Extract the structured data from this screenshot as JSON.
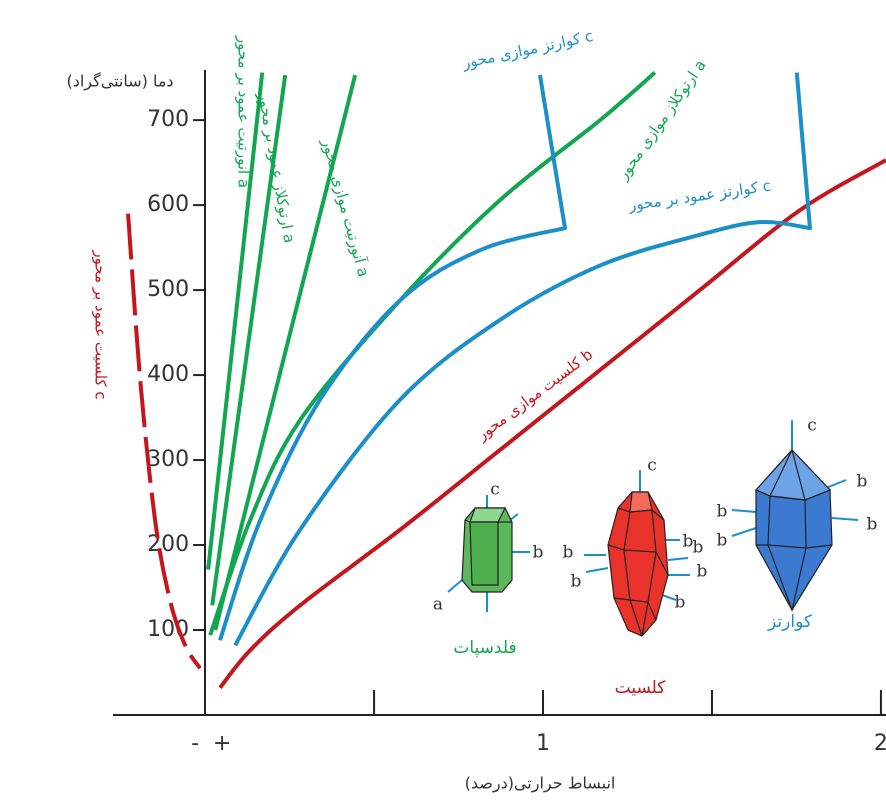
{
  "chart_data": {
    "type": "line",
    "ylabel": "دما (سانتی‌گراد)",
    "xlabel": "انبساط حرارتی(درصد)",
    "xlim": [
      -0.607,
      2.015
    ],
    "ylim": [
      0,
      759
    ],
    "yticks": [
      100,
      200,
      300,
      400,
      500,
      600,
      700
    ],
    "xticks": [
      1,
      2
    ],
    "xminor": [
      0.5,
      1.5
    ],
    "sign_labels": [
      "-",
      "+"
    ],
    "series": [
      {
        "name": "کلسیت عمود بر محور c",
        "color": "#c4161c",
        "dash": true,
        "x": [
          -0.228,
          -0.192,
          -0.148,
          -0.104,
          -0.059,
          -0.015
        ],
        "values": [
          590,
          394,
          229,
          135,
          82,
          55
        ]
      },
      {
        "name": "کلسیت موازی محور b",
        "color": "#c4161c",
        "x": [
          0.044,
          0.133,
          0.281,
          0.577,
          0.873,
          1.169,
          1.464,
          1.76,
          2.015
        ],
        "values": [
          32,
          76,
          129,
          218,
          312,
          406,
          500,
          594,
          653
        ]
      },
      {
        "name": "آنورتیت عمود بر محور a",
        "color": "#12a650",
        "x": [
          0.009,
          0.169
        ],
        "values": [
          171,
          756
        ]
      },
      {
        "name": "ارتوکلاز عمود بر محور a",
        "color": "#12a650",
        "x": [
          0.021,
          0.237
        ],
        "values": [
          129,
          753
        ]
      },
      {
        "name": "آنورتیت موازی محور a",
        "color": "#12a650",
        "x": [
          0.03,
          0.444
        ],
        "values": [
          100,
          753
        ]
      },
      {
        "name": "ارتوکلاز موازی محور a",
        "color": "#12a650",
        "x": [
          0.015,
          0.133,
          0.281,
          0.577,
          0.873,
          1.169,
          1.331
        ],
        "values": [
          94,
          229,
          347,
          488,
          606,
          700,
          756
        ]
      },
      {
        "name": "کوارتز موازی محور c",
        "color": "#1b8fc9",
        "x": [
          0.044,
          0.163,
          0.34,
          0.577,
          0.814,
          1.065,
          0.991
        ],
        "values": [
          88,
          229,
          371,
          488,
          547,
          573,
          753
        ]
      },
      {
        "name": "کوارتز عمود بر محور c",
        "color": "#1b8fc9",
        "x": [
          0.089,
          0.281,
          0.577,
          0.873,
          1.169,
          1.464,
          1.642,
          1.79,
          1.751
        ],
        "values": [
          82,
          218,
          371,
          465,
          529,
          565,
          580,
          573,
          756
        ]
      }
    ],
    "minerals": [
      {
        "name": "فلدسپات",
        "color": "#12a650",
        "axis_labels": [
          "c",
          "b",
          "a"
        ]
      },
      {
        "name": "کلسیت",
        "color": "#c4161c",
        "axis_labels": [
          "c",
          "b",
          "b",
          "b",
          "b",
          "b",
          "b"
        ]
      },
      {
        "name": "کوارتز",
        "color": "#1b8fc9",
        "axis_labels": [
          "c",
          "b",
          "b",
          "b",
          "b"
        ]
      }
    ]
  }
}
